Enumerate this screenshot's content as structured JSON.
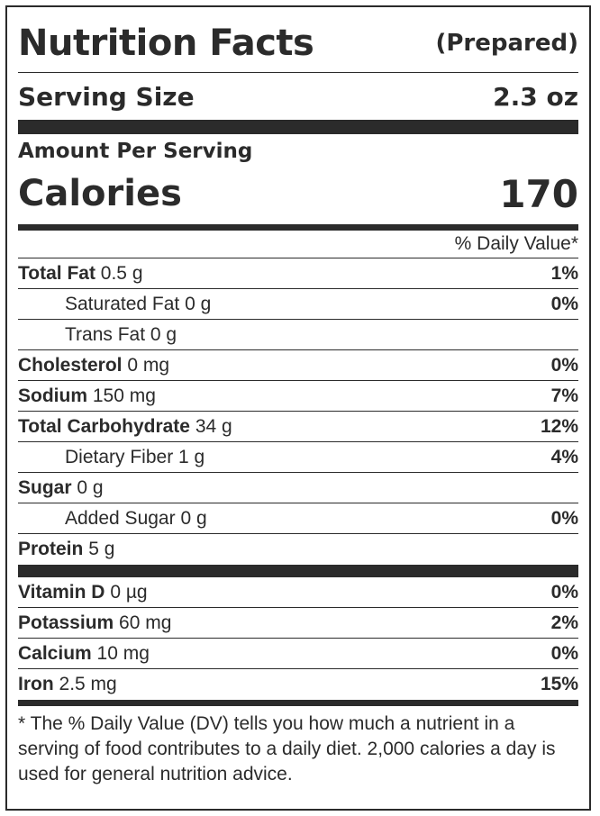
{
  "header": {
    "title": "Nutrition Facts",
    "prepared": "(Prepared)"
  },
  "serving": {
    "label": "Serving Size",
    "value": "2.3 oz"
  },
  "amount_per_serving": "Amount Per Serving",
  "calories": {
    "label": "Calories",
    "value": "170"
  },
  "daily_value_header": "% Daily Value*",
  "nutrients": [
    {
      "name": "Total Fat",
      "amount": "0.5 g",
      "dv": "1%"
    },
    {
      "name": "Saturated Fat",
      "amount": "0 g",
      "dv": "0%"
    },
    {
      "name": "Trans Fat",
      "amount": "0 g",
      "dv": ""
    },
    {
      "name": "Cholesterol",
      "amount": "0 mg",
      "dv": "0%"
    },
    {
      "name": "Sodium",
      "amount": "150 mg",
      "dv": "7%"
    },
    {
      "name": "Total Carbohydrate",
      "amount": "34 g",
      "dv": "12%"
    },
    {
      "name": "Dietary Fiber",
      "amount": "1 g",
      "dv": "4%"
    },
    {
      "name": "Sugar",
      "amount": "0 g",
      "dv": ""
    },
    {
      "name": "Added Sugar",
      "amount": "0 g",
      "dv": "0%"
    },
    {
      "name": "Protein",
      "amount": "5 g",
      "dv": ""
    }
  ],
  "vitamins": [
    {
      "name": "Vitamin D",
      "amount": "0 µg",
      "dv": "0%"
    },
    {
      "name": "Potassium",
      "amount": "60 mg",
      "dv": "2%"
    },
    {
      "name": "Calcium",
      "amount": "10 mg",
      "dv": "0%"
    },
    {
      "name": "Iron",
      "amount": "2.5 mg",
      "dv": "15%"
    }
  ],
  "footnote": "* The % Daily Value (DV) tells you how much a nutrient in a serving of food contributes to a daily diet. 2,000 calories a day is used for general nutrition advice."
}
